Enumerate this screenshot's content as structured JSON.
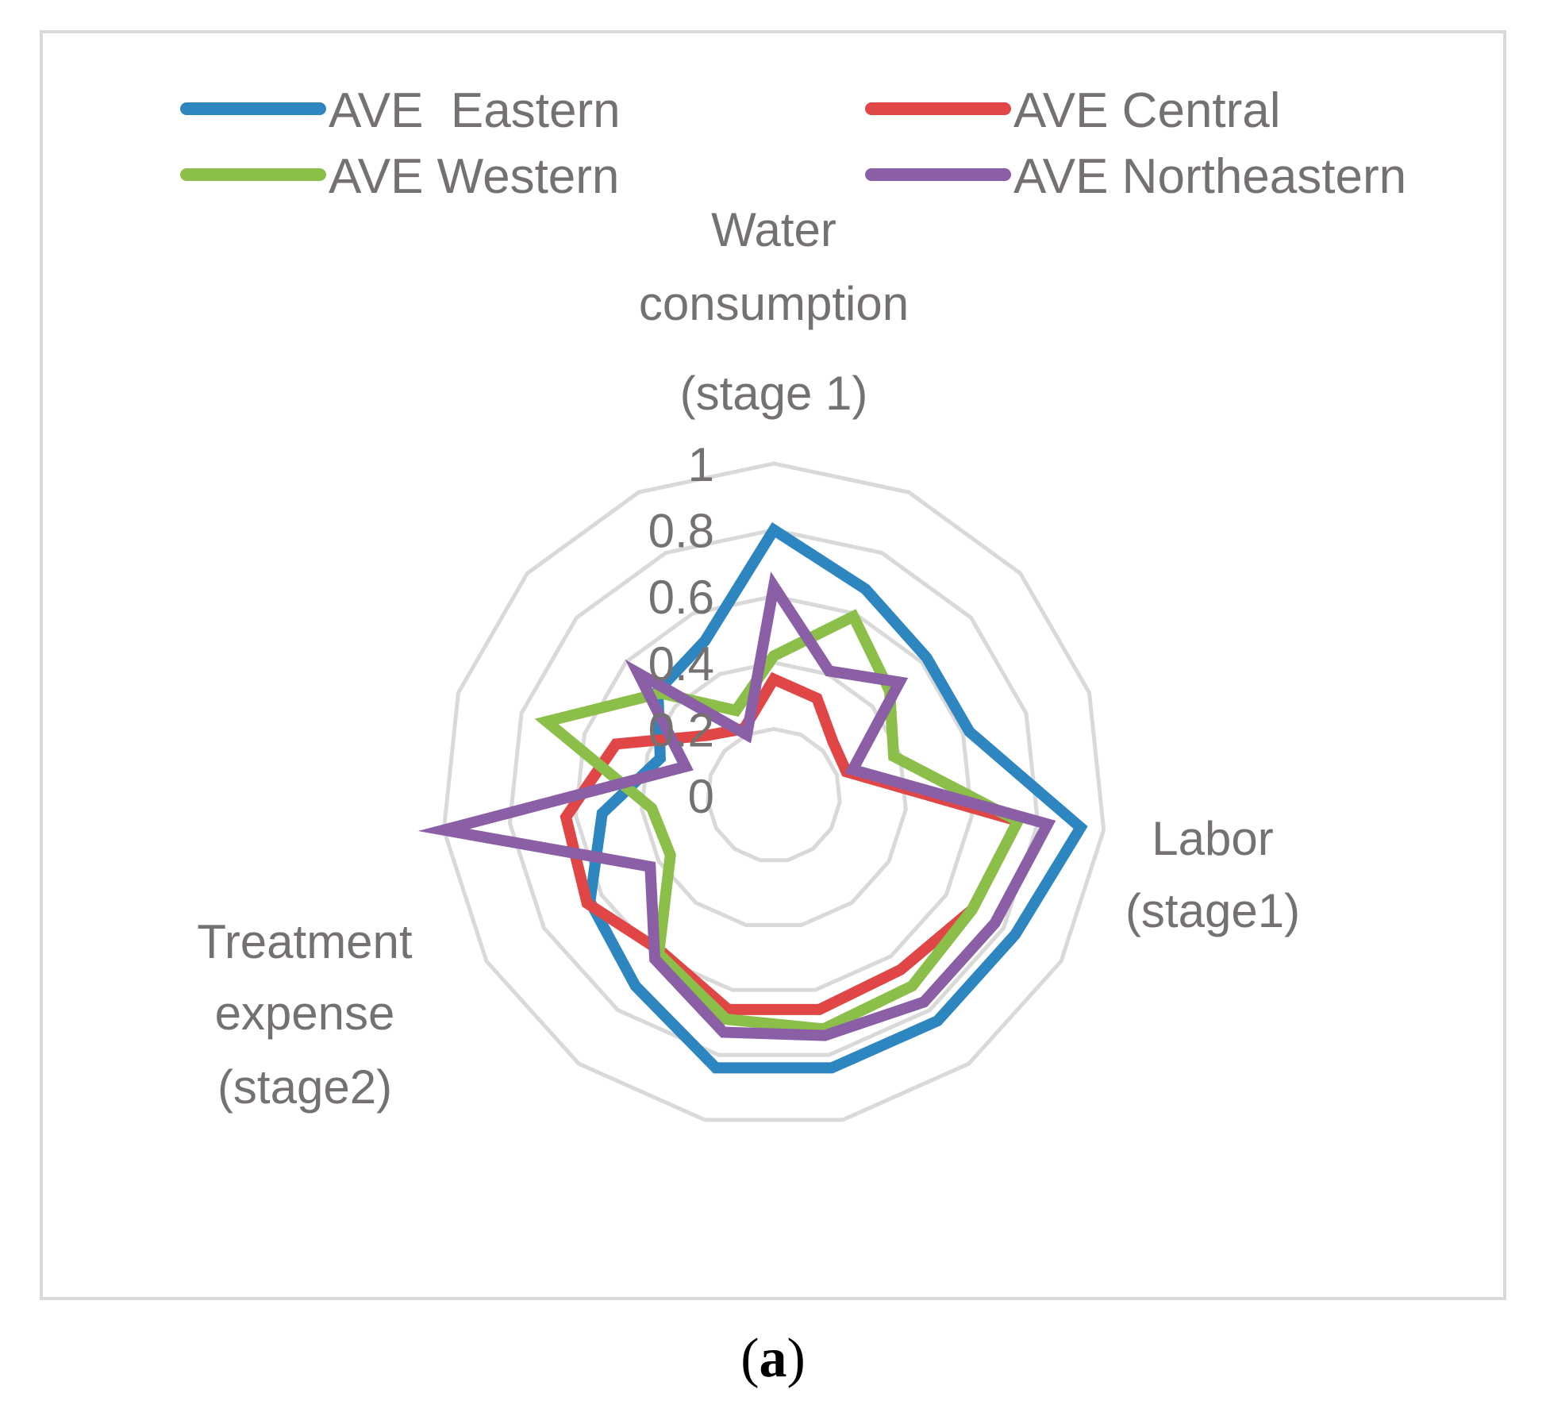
{
  "colors": {
    "eastern": "#2e86c1",
    "central": "#e04646",
    "western": "#8bbf4a",
    "northeastern": "#8a5fa6",
    "grid": "#d9d9d9",
    "text": "#767171"
  },
  "caption": {
    "open": "(",
    "letter": "a",
    "close": ")"
  },
  "chart_data": {
    "type": "radar",
    "title": "",
    "axes_count": 15,
    "axis_labels": [
      {
        "index": 0,
        "lines": [
          "Water",
          "consumption",
          "(stage 1)"
        ]
      },
      {
        "index": 4,
        "lines": [
          "Labor",
          "(stage1)"
        ]
      },
      {
        "index": 10,
        "lines": [
          "Treatment",
          "expense",
          "(stage2)"
        ]
      }
    ],
    "radial_range": [
      0,
      1
    ],
    "radial_ticks": [
      0,
      0.2,
      0.4,
      0.6,
      0.8,
      1
    ],
    "radial_tick_labels": [
      "0",
      "0.2",
      "0.4",
      "0.6",
      "0.8",
      "1"
    ],
    "grid": true,
    "legend_position": "top",
    "series": [
      {
        "key": "eastern",
        "name": "AVE  Eastern",
        "values": [
          0.8,
          0.68,
          0.62,
          0.62,
          0.93,
          0.84,
          0.84,
          0.84,
          0.84,
          0.71,
          0.64,
          0.52,
          0.36,
          0.47,
          0.51
        ]
      },
      {
        "key": "central",
        "name": "AVE Central",
        "values": [
          0.35,
          0.32,
          0.24,
          0.23,
          0.74,
          0.69,
          0.65,
          0.66,
          0.66,
          0.58,
          0.65,
          0.63,
          0.5,
          0.27,
          0.22
        ]
      },
      {
        "key": "western",
        "name": "AVE Western",
        "values": [
          0.42,
          0.59,
          0.47,
          0.38,
          0.74,
          0.69,
          0.71,
          0.72,
          0.69,
          0.59,
          0.36,
          0.37,
          0.72,
          0.46,
          0.28
        ]
      },
      {
        "key": "northeastern",
        "name": "AVE Northeastern",
        "values": [
          0.63,
          0.41,
          0.51,
          0.25,
          0.83,
          0.77,
          0.77,
          0.74,
          0.73,
          0.61,
          0.43,
          1.0,
          0.28,
          0.55,
          0.2
        ]
      }
    ]
  }
}
